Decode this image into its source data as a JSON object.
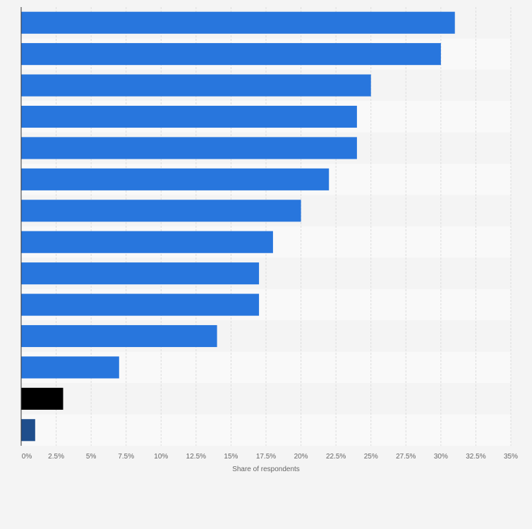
{
  "chart_data": {
    "type": "bar",
    "orientation": "horizontal",
    "categories": [
      "",
      "",
      "",
      "",
      "",
      "",
      "",
      "",
      "",
      "",
      "",
      "",
      "",
      ""
    ],
    "values": [
      31,
      30,
      25,
      24,
      24,
      22,
      20,
      18,
      17,
      17,
      14,
      7,
      3,
      1
    ],
    "bar_colors": [
      "#2876dd",
      "#2876dd",
      "#2876dd",
      "#2876dd",
      "#2876dd",
      "#2876dd",
      "#2876dd",
      "#2876dd",
      "#2876dd",
      "#2876dd",
      "#2876dd",
      "#2876dd",
      "#000000",
      "#1f4e8c"
    ],
    "xlabel": "Share of respondents",
    "ylabel": "",
    "xlim": [
      0,
      35
    ],
    "x_ticks": [
      0,
      2.5,
      5,
      7.5,
      10,
      12.5,
      15,
      17.5,
      20,
      22.5,
      25,
      27.5,
      30,
      32.5,
      35
    ],
    "x_tick_labels": [
      "0%",
      "2.5%",
      "5%",
      "7.5%",
      "10%",
      "12.5%",
      "15%",
      "17.5%",
      "20%",
      "22.5%",
      "25%",
      "27.5%",
      "30%",
      "32.5%",
      "35%"
    ],
    "grid": true,
    "legend": "none"
  }
}
